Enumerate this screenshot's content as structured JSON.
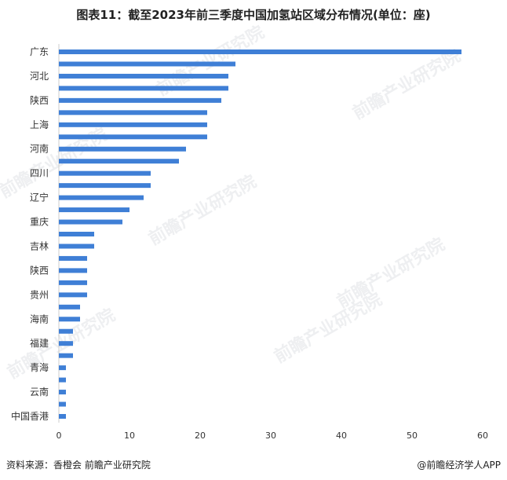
{
  "title": "图表11：截至2023年前三季度中国加氢站区域分布情况(单位：座)",
  "footer": {
    "source": "资料来源：香橙会 前瞻产业研究院",
    "brand": "@前瞻经济学人APP"
  },
  "watermark": "前瞻产业研究院",
  "colors": {
    "bar": "#3f7fd6",
    "axis": "#cccccc",
    "text": "#333333"
  },
  "chart_data": {
    "type": "bar",
    "orientation": "horizontal",
    "title": "图表11：截至2023年前三季度中国加氢站区域分布情况(单位：座)",
    "categories": [
      "广东",
      "",
      "河北",
      "",
      "陕西",
      "",
      "上海",
      "",
      "河南",
      "",
      "四川",
      "",
      "辽宁",
      "",
      "重庆",
      "",
      "吉林",
      "",
      "陕西",
      "",
      "贵州",
      "",
      "海南",
      "",
      "福建",
      "",
      "青海",
      "",
      "云南",
      "",
      "中国香港"
    ],
    "values": [
      57,
      25,
      24,
      24,
      23,
      21,
      21,
      21,
      18,
      17,
      13,
      13,
      12,
      10,
      9,
      5,
      5,
      4,
      4,
      4,
      4,
      3,
      3,
      2,
      2,
      2,
      1,
      1,
      1,
      1,
      1
    ],
    "xlim": [
      0,
      60
    ],
    "xticks": [
      "0",
      "10",
      "20",
      "30",
      "40",
      "50",
      "60"
    ],
    "grid": false,
    "legend": "none"
  }
}
